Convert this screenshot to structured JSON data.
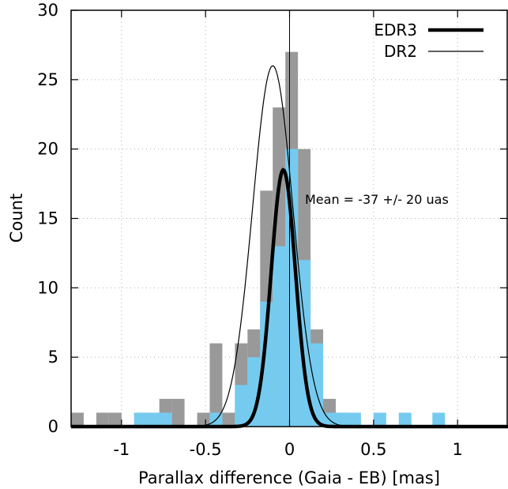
{
  "chart_data": {
    "type": "bar",
    "title": "",
    "xlabel": "Parallax difference (Gaia - EB) [mas]",
    "ylabel": "Count",
    "xlim": [
      -1.3,
      1.3
    ],
    "ylim": [
      0,
      30
    ],
    "xticks": [
      -1,
      -0.5,
      0,
      0.5,
      1
    ],
    "xtick_labels": [
      "-1",
      "-0.5",
      "0",
      "0.5",
      "1"
    ],
    "yticks": [
      0,
      5,
      10,
      15,
      20,
      25,
      30
    ],
    "ytick_labels": [
      "0",
      "5",
      "10",
      "15",
      "20",
      "25",
      "30"
    ],
    "grid": true,
    "bin_width": 0.075,
    "legend": {
      "position": "top-right"
    },
    "annotation": "Mean = -37 +/- 20 uas",
    "series": [
      {
        "name": "DR2",
        "kind": "histogram",
        "color": "#999999",
        "bins": [
          {
            "x0": -1.3,
            "count": 1
          },
          {
            "x0": -1.15,
            "count": 1
          },
          {
            "x0": -1.075,
            "count": 1
          },
          {
            "x0": -0.925,
            "count": 1
          },
          {
            "x0": -0.85,
            "count": 1
          },
          {
            "x0": -0.775,
            "count": 2
          },
          {
            "x0": -0.7,
            "count": 2
          },
          {
            "x0": -0.55,
            "count": 1
          },
          {
            "x0": -0.475,
            "count": 6
          },
          {
            "x0": -0.4,
            "count": 1
          },
          {
            "x0": -0.325,
            "count": 6
          },
          {
            "x0": -0.25,
            "count": 7
          },
          {
            "x0": -0.175,
            "count": 17
          },
          {
            "x0": -0.1,
            "count": 23
          },
          {
            "x0": -0.025,
            "count": 27
          },
          {
            "x0": 0.05,
            "count": 20
          },
          {
            "x0": 0.125,
            "count": 7
          },
          {
            "x0": 0.2,
            "count": 2
          },
          {
            "x0": 0.275,
            "count": 1
          }
        ]
      },
      {
        "name": "EDR3",
        "kind": "histogram",
        "color": "#75cbef",
        "bins": [
          {
            "x0": -0.925,
            "count": 1
          },
          {
            "x0": -0.85,
            "count": 1
          },
          {
            "x0": -0.775,
            "count": 1
          },
          {
            "x0": -0.475,
            "count": 1
          },
          {
            "x0": -0.325,
            "count": 3
          },
          {
            "x0": -0.25,
            "count": 5
          },
          {
            "x0": -0.175,
            "count": 9
          },
          {
            "x0": -0.1,
            "count": 13
          },
          {
            "x0": -0.025,
            "count": 20
          },
          {
            "x0": 0.05,
            "count": 12
          },
          {
            "x0": 0.125,
            "count": 6
          },
          {
            "x0": 0.2,
            "count": 1
          },
          {
            "x0": 0.275,
            "count": 1
          },
          {
            "x0": 0.35,
            "count": 1
          },
          {
            "x0": 0.5,
            "count": 1
          },
          {
            "x0": 0.65,
            "count": 1
          },
          {
            "x0": 0.85,
            "count": 1
          }
        ]
      }
    ],
    "curves": [
      {
        "name": "EDR3",
        "color": "#000000",
        "style": "thick",
        "mean": -0.037,
        "sigma": 0.072,
        "peak": 18.5
      },
      {
        "name": "DR2",
        "color": "#000000",
        "style": "thin",
        "mean": -0.1,
        "sigma": 0.12,
        "peak": 26
      }
    ]
  }
}
